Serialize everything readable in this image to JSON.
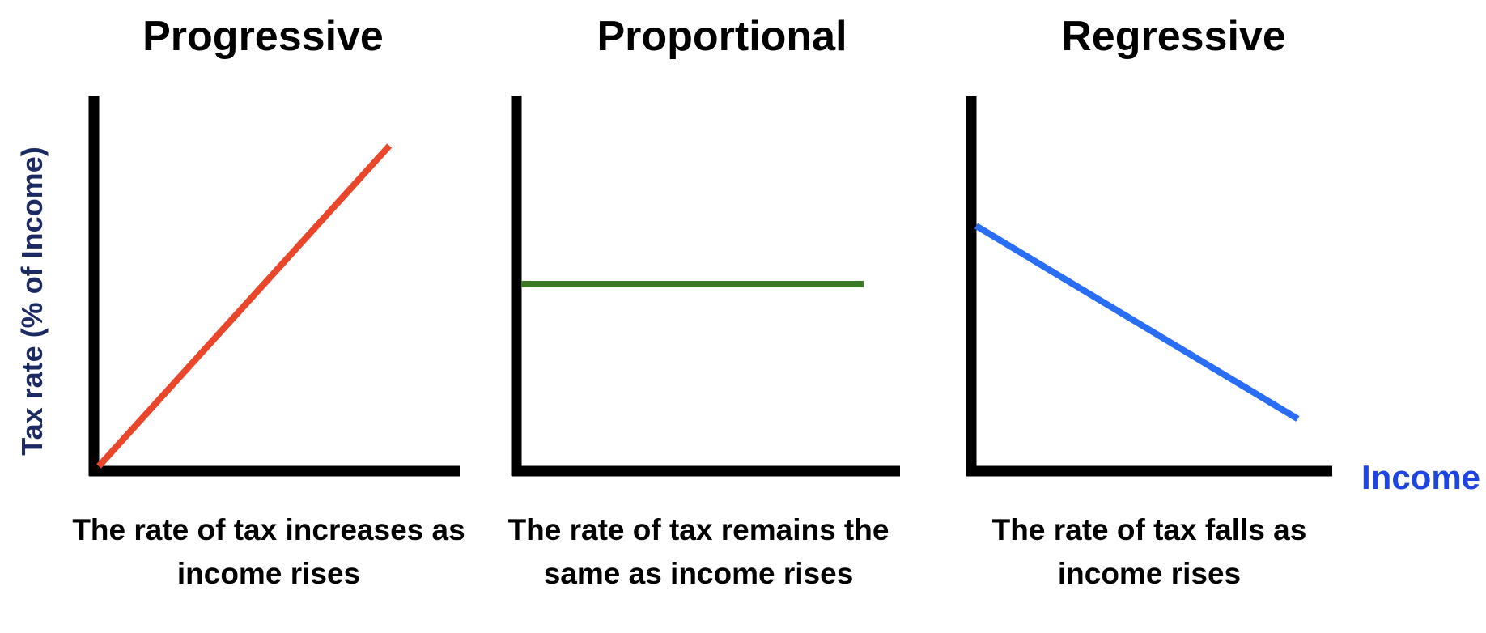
{
  "panels": [
    {
      "id": "progressive",
      "title": "Progressive",
      "caption_line1": "The rate of tax increases as",
      "caption_line2": "income rises",
      "line_color": "#e8472b",
      "trend": "increasing",
      "line_start": [
        0.0,
        0.0
      ],
      "line_end": [
        0.82,
        0.88
      ]
    },
    {
      "id": "proportional",
      "title": "Proportional",
      "caption_line1": "The rate of tax remains the",
      "caption_line2": "same as income rises",
      "line_color": "#3a7a24",
      "trend": "constant",
      "line_start": [
        0.0,
        0.5
      ],
      "line_end": [
        0.92,
        0.5
      ]
    },
    {
      "id": "regressive",
      "title": "Regressive",
      "caption_line1": "The rate of tax falls as",
      "caption_line2": "income rises",
      "line_color": "#2a6ef5",
      "trend": "decreasing",
      "line_start": [
        0.0,
        0.66
      ],
      "line_end": [
        0.92,
        0.13
      ]
    }
  ],
  "y_axis_label": "Tax rate (% of Income)",
  "x_axis_label": "Income",
  "colors": {
    "axis": "#000000",
    "y_label": "#1b2a63",
    "x_label": "#1f45e0"
  }
}
